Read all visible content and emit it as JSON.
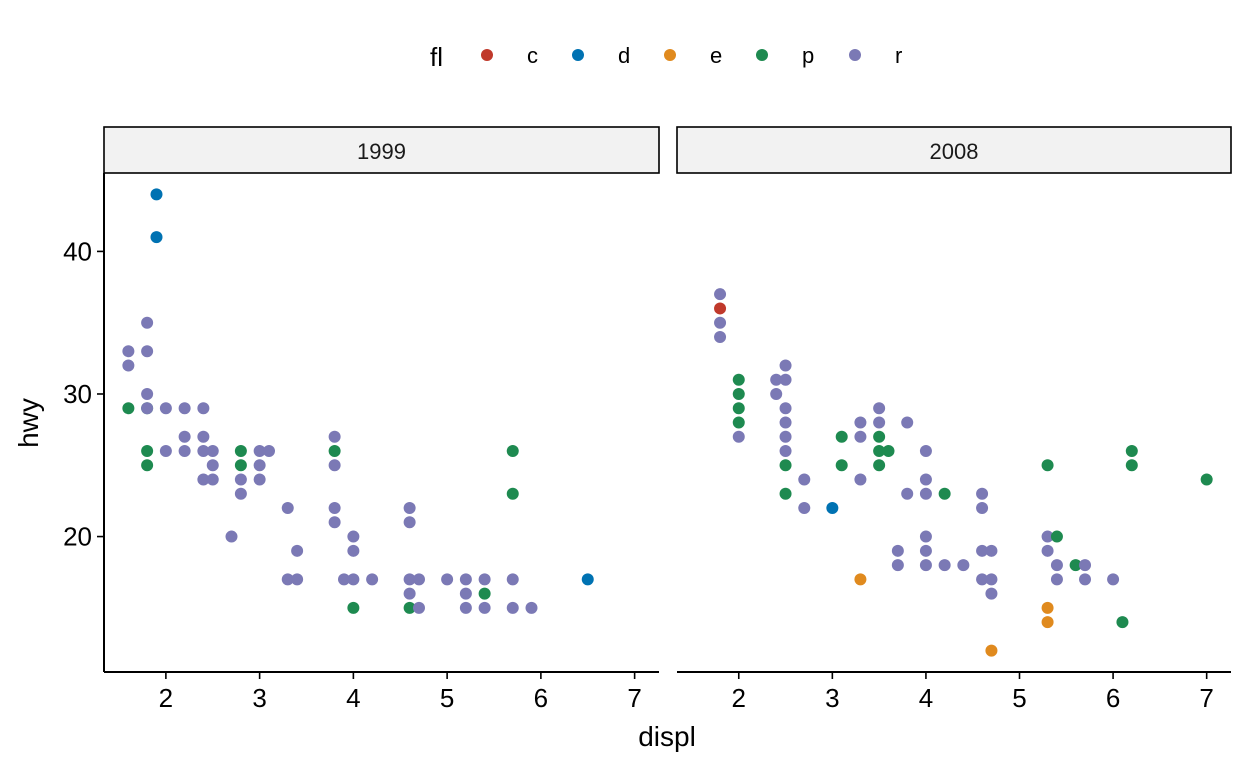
{
  "chart_data": {
    "type": "scatter",
    "xlabel": "displ",
    "ylabel": "hwy",
    "xlim": [
      1.34,
      7.26
    ],
    "ylim": [
      10.5,
      45.5
    ],
    "xticks": [
      2,
      3,
      4,
      5,
      6,
      7
    ],
    "yticks": [
      20,
      30,
      40
    ],
    "grid": false,
    "legend": {
      "title": "fl",
      "position": "top",
      "entries": [
        {
          "key": "c",
          "label": "c",
          "color": "#C0392B"
        },
        {
          "key": "d",
          "label": "d",
          "color": "#0072B2"
        },
        {
          "key": "e",
          "label": "e",
          "color": "#E08A1E"
        },
        {
          "key": "p",
          "label": "p",
          "color": "#1E8A50"
        },
        {
          "key": "r",
          "label": "r",
          "color": "#7B79B5"
        }
      ]
    },
    "facets": [
      {
        "label": "1999",
        "points": [
          {
            "x": 1.6,
            "y": 33,
            "fl": "r"
          },
          {
            "x": 1.6,
            "y": 32,
            "fl": "r"
          },
          {
            "x": 1.6,
            "y": 29,
            "fl": "p"
          },
          {
            "x": 1.8,
            "y": 35,
            "fl": "r"
          },
          {
            "x": 1.8,
            "y": 33,
            "fl": "r"
          },
          {
            "x": 1.8,
            "y": 30,
            "fl": "r"
          },
          {
            "x": 1.8,
            "y": 29,
            "fl": "p"
          },
          {
            "x": 1.8,
            "y": 29,
            "fl": "r"
          },
          {
            "x": 1.8,
            "y": 26,
            "fl": "p"
          },
          {
            "x": 1.8,
            "y": 25,
            "fl": "p"
          },
          {
            "x": 1.9,
            "y": 44,
            "fl": "d"
          },
          {
            "x": 1.9,
            "y": 41,
            "fl": "d"
          },
          {
            "x": 2.0,
            "y": 29,
            "fl": "r"
          },
          {
            "x": 2.0,
            "y": 26,
            "fl": "r"
          },
          {
            "x": 2.2,
            "y": 29,
            "fl": "r"
          },
          {
            "x": 2.2,
            "y": 27,
            "fl": "r"
          },
          {
            "x": 2.2,
            "y": 26,
            "fl": "r"
          },
          {
            "x": 2.4,
            "y": 29,
            "fl": "r"
          },
          {
            "x": 2.4,
            "y": 27,
            "fl": "r"
          },
          {
            "x": 2.4,
            "y": 26,
            "fl": "r"
          },
          {
            "x": 2.4,
            "y": 24,
            "fl": "r"
          },
          {
            "x": 2.5,
            "y": 26,
            "fl": "r"
          },
          {
            "x": 2.5,
            "y": 25,
            "fl": "r"
          },
          {
            "x": 2.5,
            "y": 24,
            "fl": "r"
          },
          {
            "x": 2.7,
            "y": 20,
            "fl": "r"
          },
          {
            "x": 2.8,
            "y": 26,
            "fl": "p"
          },
          {
            "x": 2.8,
            "y": 25,
            "fl": "p"
          },
          {
            "x": 2.8,
            "y": 24,
            "fl": "r"
          },
          {
            "x": 2.8,
            "y": 23,
            "fl": "r"
          },
          {
            "x": 3.0,
            "y": 26,
            "fl": "r"
          },
          {
            "x": 3.0,
            "y": 25,
            "fl": "r"
          },
          {
            "x": 3.0,
            "y": 24,
            "fl": "r"
          },
          {
            "x": 3.1,
            "y": 26,
            "fl": "r"
          },
          {
            "x": 3.3,
            "y": 22,
            "fl": "r"
          },
          {
            "x": 3.3,
            "y": 17,
            "fl": "r"
          },
          {
            "x": 3.4,
            "y": 19,
            "fl": "r"
          },
          {
            "x": 3.4,
            "y": 17,
            "fl": "r"
          },
          {
            "x": 3.8,
            "y": 27,
            "fl": "r"
          },
          {
            "x": 3.8,
            "y": 26,
            "fl": "p"
          },
          {
            "x": 3.8,
            "y": 25,
            "fl": "r"
          },
          {
            "x": 3.8,
            "y": 22,
            "fl": "r"
          },
          {
            "x": 3.8,
            "y": 21,
            "fl": "r"
          },
          {
            "x": 3.9,
            "y": 17,
            "fl": "r"
          },
          {
            "x": 4.0,
            "y": 20,
            "fl": "r"
          },
          {
            "x": 4.0,
            "y": 19,
            "fl": "r"
          },
          {
            "x": 4.0,
            "y": 17,
            "fl": "r"
          },
          {
            "x": 4.0,
            "y": 15,
            "fl": "p"
          },
          {
            "x": 4.2,
            "y": 17,
            "fl": "r"
          },
          {
            "x": 4.6,
            "y": 22,
            "fl": "r"
          },
          {
            "x": 4.6,
            "y": 21,
            "fl": "r"
          },
          {
            "x": 4.6,
            "y": 17,
            "fl": "r"
          },
          {
            "x": 4.6,
            "y": 16,
            "fl": "r"
          },
          {
            "x": 4.6,
            "y": 15,
            "fl": "p"
          },
          {
            "x": 4.7,
            "y": 17,
            "fl": "r"
          },
          {
            "x": 4.7,
            "y": 15,
            "fl": "r"
          },
          {
            "x": 5.0,
            "y": 17,
            "fl": "r"
          },
          {
            "x": 5.2,
            "y": 17,
            "fl": "r"
          },
          {
            "x": 5.2,
            "y": 16,
            "fl": "r"
          },
          {
            "x": 5.2,
            "y": 15,
            "fl": "r"
          },
          {
            "x": 5.4,
            "y": 17,
            "fl": "r"
          },
          {
            "x": 5.4,
            "y": 16,
            "fl": "p"
          },
          {
            "x": 5.4,
            "y": 15,
            "fl": "r"
          },
          {
            "x": 5.7,
            "y": 26,
            "fl": "p"
          },
          {
            "x": 5.7,
            "y": 23,
            "fl": "p"
          },
          {
            "x": 5.7,
            "y": 17,
            "fl": "r"
          },
          {
            "x": 5.7,
            "y": 15,
            "fl": "r"
          },
          {
            "x": 5.9,
            "y": 15,
            "fl": "r"
          },
          {
            "x": 6.5,
            "y": 17,
            "fl": "d"
          }
        ]
      },
      {
        "label": "2008",
        "points": [
          {
            "x": 1.8,
            "y": 37,
            "fl": "r"
          },
          {
            "x": 1.8,
            "y": 36,
            "fl": "c"
          },
          {
            "x": 1.8,
            "y": 35,
            "fl": "r"
          },
          {
            "x": 1.8,
            "y": 34,
            "fl": "r"
          },
          {
            "x": 2.0,
            "y": 31,
            "fl": "p"
          },
          {
            "x": 2.0,
            "y": 30,
            "fl": "p"
          },
          {
            "x": 2.0,
            "y": 29,
            "fl": "p"
          },
          {
            "x": 2.0,
            "y": 28,
            "fl": "p"
          },
          {
            "x": 2.0,
            "y": 27,
            "fl": "r"
          },
          {
            "x": 2.4,
            "y": 31,
            "fl": "r"
          },
          {
            "x": 2.4,
            "y": 30,
            "fl": "r"
          },
          {
            "x": 2.5,
            "y": 32,
            "fl": "r"
          },
          {
            "x": 2.5,
            "y": 31,
            "fl": "r"
          },
          {
            "x": 2.5,
            "y": 29,
            "fl": "r"
          },
          {
            "x": 2.5,
            "y": 28,
            "fl": "r"
          },
          {
            "x": 2.5,
            "y": 27,
            "fl": "r"
          },
          {
            "x": 2.5,
            "y": 26,
            "fl": "r"
          },
          {
            "x": 2.5,
            "y": 25,
            "fl": "p"
          },
          {
            "x": 2.5,
            "y": 23,
            "fl": "p"
          },
          {
            "x": 2.7,
            "y": 24,
            "fl": "r"
          },
          {
            "x": 2.7,
            "y": 22,
            "fl": "r"
          },
          {
            "x": 3.0,
            "y": 22,
            "fl": "d"
          },
          {
            "x": 3.1,
            "y": 27,
            "fl": "p"
          },
          {
            "x": 3.1,
            "y": 25,
            "fl": "p"
          },
          {
            "x": 3.3,
            "y": 28,
            "fl": "r"
          },
          {
            "x": 3.3,
            "y": 27,
            "fl": "r"
          },
          {
            "x": 3.3,
            "y": 24,
            "fl": "r"
          },
          {
            "x": 3.3,
            "y": 17,
            "fl": "e"
          },
          {
            "x": 3.5,
            "y": 29,
            "fl": "r"
          },
          {
            "x": 3.5,
            "y": 28,
            "fl": "r"
          },
          {
            "x": 3.5,
            "y": 27,
            "fl": "p"
          },
          {
            "x": 3.5,
            "y": 26,
            "fl": "p"
          },
          {
            "x": 3.5,
            "y": 25,
            "fl": "p"
          },
          {
            "x": 3.6,
            "y": 26,
            "fl": "p"
          },
          {
            "x": 3.7,
            "y": 19,
            "fl": "r"
          },
          {
            "x": 3.7,
            "y": 18,
            "fl": "r"
          },
          {
            "x": 3.8,
            "y": 28,
            "fl": "r"
          },
          {
            "x": 3.8,
            "y": 23,
            "fl": "r"
          },
          {
            "x": 4.0,
            "y": 26,
            "fl": "r"
          },
          {
            "x": 4.0,
            "y": 24,
            "fl": "r"
          },
          {
            "x": 4.0,
            "y": 23,
            "fl": "r"
          },
          {
            "x": 4.0,
            "y": 20,
            "fl": "r"
          },
          {
            "x": 4.0,
            "y": 19,
            "fl": "r"
          },
          {
            "x": 4.0,
            "y": 18,
            "fl": "r"
          },
          {
            "x": 4.2,
            "y": 23,
            "fl": "p"
          },
          {
            "x": 4.2,
            "y": 18,
            "fl": "r"
          },
          {
            "x": 4.4,
            "y": 18,
            "fl": "r"
          },
          {
            "x": 4.6,
            "y": 23,
            "fl": "r"
          },
          {
            "x": 4.6,
            "y": 22,
            "fl": "r"
          },
          {
            "x": 4.6,
            "y": 19,
            "fl": "r"
          },
          {
            "x": 4.6,
            "y": 17,
            "fl": "r"
          },
          {
            "x": 4.7,
            "y": 19,
            "fl": "r"
          },
          {
            "x": 4.7,
            "y": 17,
            "fl": "r"
          },
          {
            "x": 4.7,
            "y": 16,
            "fl": "r"
          },
          {
            "x": 4.7,
            "y": 12,
            "fl": "e"
          },
          {
            "x": 5.3,
            "y": 25,
            "fl": "p"
          },
          {
            "x": 5.3,
            "y": 20,
            "fl": "r"
          },
          {
            "x": 5.3,
            "y": 19,
            "fl": "r"
          },
          {
            "x": 5.3,
            "y": 15,
            "fl": "e"
          },
          {
            "x": 5.3,
            "y": 14,
            "fl": "e"
          },
          {
            "x": 5.4,
            "y": 20,
            "fl": "p"
          },
          {
            "x": 5.4,
            "y": 18,
            "fl": "r"
          },
          {
            "x": 5.4,
            "y": 17,
            "fl": "r"
          },
          {
            "x": 5.6,
            "y": 18,
            "fl": "p"
          },
          {
            "x": 5.7,
            "y": 18,
            "fl": "r"
          },
          {
            "x": 5.7,
            "y": 17,
            "fl": "r"
          },
          {
            "x": 6.0,
            "y": 17,
            "fl": "r"
          },
          {
            "x": 6.1,
            "y": 14,
            "fl": "p"
          },
          {
            "x": 6.2,
            "y": 26,
            "fl": "p"
          },
          {
            "x": 6.2,
            "y": 25,
            "fl": "p"
          },
          {
            "x": 7.0,
            "y": 24,
            "fl": "p"
          }
        ]
      }
    ]
  }
}
